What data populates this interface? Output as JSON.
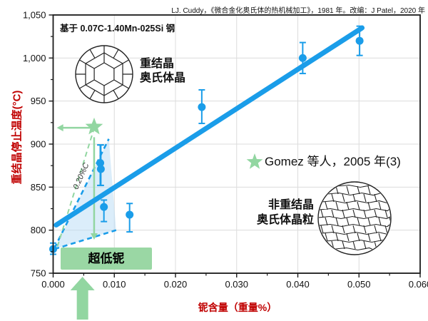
{
  "source_note": "LJ. Cuddy，《微合金化奥氏体的热机械加工》，1981 年。改编：J Patel，2020 年",
  "subtitle": "基于 0.07C-1.40Mn-025Si 钢",
  "colors": {
    "blue": "#1a9de9",
    "light_blue": "#b8dcf5",
    "green": "#92d6a1",
    "green_box": "#9ad7a4",
    "axis_title_red": "#c00000",
    "grid": "#dcdcdc",
    "axis": "#1a1a1a"
  },
  "y_axis": {
    "title": "重结晶停止温度(°C)",
    "tick_labels": [
      "1,050",
      "1,000",
      "950",
      "900",
      "850",
      "800",
      "750"
    ],
    "tick_values": [
      1050,
      1000,
      950,
      900,
      850,
      800,
      750
    ],
    "minor_step": 25
  },
  "x_axis": {
    "title": "铌含量（重量%）",
    "tick_labels": [
      "0.000",
      "0.010",
      "0.020",
      "0.030",
      "0.040",
      "0.050",
      "0.060"
    ],
    "tick_values": [
      0,
      0.01,
      0.02,
      0.03,
      0.04,
      0.05,
      0.06
    ],
    "minor_step": 0.005
  },
  "annotations": {
    "recrystallized": {
      "line1": "重结晶",
      "line2": "奥氏体晶"
    },
    "non_recrystallized": {
      "line1": "非重结晶",
      "line2": "奥氏体晶粒"
    },
    "ultra_low_nb": "超低铌",
    "carbon": "0.20%C",
    "legend": "Gomez 等人，2005 年(3)"
  },
  "chart_data": {
    "type": "scatter",
    "xlabel": "铌含量（重量%）",
    "ylabel": "重结晶停止温度(°C)",
    "xlim": [
      0,
      0.06
    ],
    "ylim": [
      750,
      1050
    ],
    "grid": true,
    "legend_position": "center-right",
    "points": [
      {
        "x": 0.0,
        "y": 778,
        "err_low": 772,
        "err_high": 785
      },
      {
        "x": 0.0077,
        "y": 878,
        "err_low": 852,
        "err_high": 899
      },
      {
        "x": 0.0078,
        "y": 871,
        "err_low": 852,
        "err_high": 899
      },
      {
        "x": 0.0083,
        "y": 827,
        "err_low": 810,
        "err_high": 835
      },
      {
        "x": 0.0125,
        "y": 818,
        "err_low": 798,
        "err_high": 831
      },
      {
        "x": 0.0243,
        "y": 943,
        "err_low": 924,
        "err_high": 963
      },
      {
        "x": 0.0408,
        "y": 1000,
        "err_low": 982,
        "err_high": 1018
      },
      {
        "x": 0.0501,
        "y": 1020,
        "err_low": 1003,
        "err_high": 1037
      }
    ],
    "trend_line": {
      "from": [
        0.0005,
        806
      ],
      "to": [
        0.0505,
        1035
      ]
    },
    "gomez_star": {
      "x": 0.0067,
      "y": 920
    },
    "dashed_lines": [
      {
        "color_key": "blue",
        "from": [
          0.0002,
          779
        ],
        "to": [
          0.0091,
          906
        ]
      },
      {
        "color_key": "blue",
        "from": [
          0.0002,
          778
        ],
        "to": [
          0.0103,
          800
        ]
      },
      {
        "color_key": "green",
        "from": [
          0.0007,
          781
        ],
        "to": [
          0.0066,
          916
        ]
      }
    ],
    "shaded_region": [
      [
        0.0002,
        778
      ],
      [
        0.0091,
        906
      ],
      [
        0.0103,
        800
      ]
    ],
    "arrows": {
      "horizontal_left": {
        "y": 919,
        "x_from": 0.0062,
        "x_to": 0.0006
      },
      "vertical_down": {
        "x": 0.0067,
        "y_from": 908,
        "y_to": 789
      },
      "bottom_up_x": 0.0048
    }
  }
}
